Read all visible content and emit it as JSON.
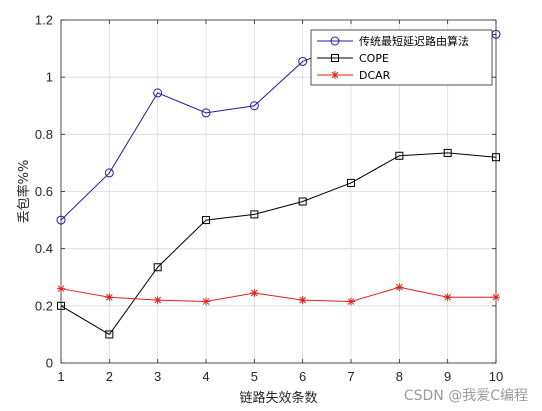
{
  "chart_data": {
    "type": "line",
    "title": "",
    "xlabel": "链路失效条数",
    "ylabel": "丢包率%%",
    "xlim": [
      1,
      10
    ],
    "ylim": [
      0,
      1.2
    ],
    "xticks": [
      1,
      2,
      3,
      4,
      5,
      6,
      7,
      8,
      9,
      10
    ],
    "yticks": [
      0,
      0.2,
      0.4,
      0.6,
      0.8,
      1,
      1.2
    ],
    "ytick_labels": [
      "0",
      "0.2",
      "0.4",
      "0.6",
      "0.8",
      "1",
      "1.2"
    ],
    "grid": true,
    "legend_position": "top-right",
    "x": [
      1,
      2,
      3,
      4,
      5,
      6,
      7,
      8,
      9,
      10
    ],
    "series": [
      {
        "name": "传统最短延迟路由算法",
        "color": "#1f1f9e",
        "marker": "circle",
        "values": [
          0.5,
          0.665,
          0.945,
          0.875,
          0.9,
          1.055,
          1.12,
          1.14,
          1.13,
          1.15
        ]
      },
      {
        "name": "COPE",
        "color": "#000000",
        "marker": "square",
        "values": [
          0.2,
          0.1,
          0.335,
          0.5,
          0.52,
          0.565,
          0.63,
          0.725,
          0.735,
          0.72
        ]
      },
      {
        "name": "DCAR",
        "color": "#e0201c",
        "marker": "star",
        "values": [
          0.26,
          0.23,
          0.22,
          0.215,
          0.245,
          0.22,
          0.215,
          0.265,
          0.23,
          0.23
        ]
      }
    ]
  },
  "watermark": "CSDN @我爱C编程"
}
